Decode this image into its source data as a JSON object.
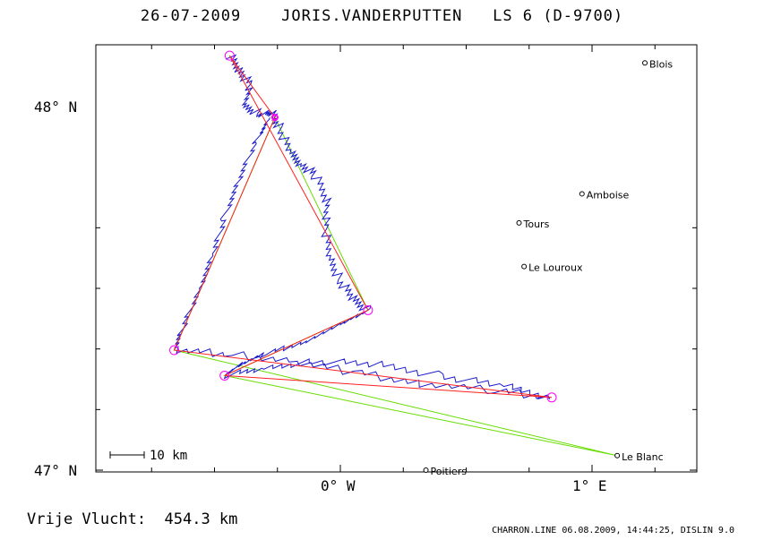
{
  "header": {
    "date": "26-07-2009",
    "pilot": "JORIS.VANDERPUTTEN",
    "glider": "LS 6 (D-9700)"
  },
  "footer": {
    "distance_text": "Vrije Vlucht:  454.3 km",
    "program_text": "CHARRON.LINE 06.08.2009, 14:44:25, DISLIN 9.0"
  },
  "axes": {
    "lat_labels": [
      "48° N",
      "47° N"
    ],
    "lon_labels": [
      "0° W",
      "1° E"
    ],
    "lat_range": [
      47.0,
      48.17
    ],
    "lon_range": [
      -0.98,
      1.4
    ]
  },
  "scale_bar": {
    "label": "10 km"
  },
  "colors": {
    "track": "#1a1acc",
    "task": "#ff2020",
    "optimized": "#66dd00",
    "turnpoint": "#ff00ff",
    "frame": "#000000"
  },
  "places": [
    {
      "name": "Blois",
      "lon": 1.21,
      "lat": 48.12
    },
    {
      "name": "Amboise",
      "lon": 0.96,
      "lat": 47.76
    },
    {
      "name": "Tours",
      "lon": 0.71,
      "lat": 47.68
    },
    {
      "name": "Le Louroux",
      "lon": 0.73,
      "lat": 47.56
    },
    {
      "name": "Le Blanc",
      "lon": 1.1,
      "lat": 47.04
    },
    {
      "name": "Poitiers",
      "lon": 0.34,
      "lat": 47.0
    }
  ],
  "turnpoints": [
    {
      "lon": -0.44,
      "lat": 48.14
    },
    {
      "lon": 0.11,
      "lat": 47.44
    },
    {
      "lon": -0.66,
      "lat": 47.33
    },
    {
      "lon": 0.84,
      "lat": 47.2
    },
    {
      "lon": -0.46,
      "lat": 47.26
    }
  ],
  "start_point": {
    "lon": -0.26,
    "lat": 47.97
  },
  "task_route": [
    {
      "lon": -0.26,
      "lat": 47.97
    },
    {
      "lon": -0.44,
      "lat": 48.14
    },
    {
      "lon": 0.11,
      "lat": 47.44
    },
    {
      "lon": -0.46,
      "lat": 47.26
    },
    {
      "lon": 0.84,
      "lat": 47.2
    },
    {
      "lon": -0.66,
      "lat": 47.33
    },
    {
      "lon": -0.26,
      "lat": 47.97
    }
  ],
  "optimized_route": [
    {
      "lon": -0.26,
      "lat": 47.97
    },
    {
      "lon": 0.11,
      "lat": 47.44
    },
    {
      "lon": -0.46,
      "lat": 47.26
    },
    {
      "lon": 1.1,
      "lat": 47.04
    },
    {
      "lon": -0.66,
      "lat": 47.33
    },
    {
      "lon": -0.26,
      "lat": 47.97
    }
  ],
  "track": [
    {
      "lon": -0.44,
      "lat": 48.14
    },
    {
      "lon": -0.4,
      "lat": 48.1
    },
    {
      "lon": -0.36,
      "lat": 48.06
    },
    {
      "lon": -0.38,
      "lat": 48.0
    },
    {
      "lon": -0.32,
      "lat": 47.98
    },
    {
      "lon": -0.27,
      "lat": 47.98
    },
    {
      "lon": -0.24,
      "lat": 47.94
    },
    {
      "lon": -0.2,
      "lat": 47.87
    },
    {
      "lon": -0.15,
      "lat": 47.84
    },
    {
      "lon": -0.1,
      "lat": 47.81
    },
    {
      "lon": -0.05,
      "lat": 47.74
    },
    {
      "lon": -0.06,
      "lat": 47.66
    },
    {
      "lon": -0.04,
      "lat": 47.58
    },
    {
      "lon": 0.0,
      "lat": 47.52
    },
    {
      "lon": 0.05,
      "lat": 47.47
    },
    {
      "lon": 0.11,
      "lat": 47.44
    },
    {
      "lon": 0.0,
      "lat": 47.4
    },
    {
      "lon": -0.15,
      "lat": 47.35
    },
    {
      "lon": -0.3,
      "lat": 47.32
    },
    {
      "lon": -0.4,
      "lat": 47.29
    },
    {
      "lon": -0.46,
      "lat": 47.26
    },
    {
      "lon": -0.3,
      "lat": 47.28
    },
    {
      "lon": -0.1,
      "lat": 47.3
    },
    {
      "lon": 0.15,
      "lat": 47.29
    },
    {
      "lon": 0.4,
      "lat": 47.26
    },
    {
      "lon": 0.65,
      "lat": 47.23
    },
    {
      "lon": 0.84,
      "lat": 47.2
    },
    {
      "lon": 0.6,
      "lat": 47.22
    },
    {
      "lon": 0.3,
      "lat": 47.24
    },
    {
      "lon": 0.05,
      "lat": 47.27
    },
    {
      "lon": -0.2,
      "lat": 47.3
    },
    {
      "lon": -0.45,
      "lat": 47.32
    },
    {
      "lon": -0.66,
      "lat": 47.33
    },
    {
      "lon": -0.62,
      "lat": 47.4
    },
    {
      "lon": -0.56,
      "lat": 47.5
    },
    {
      "lon": -0.5,
      "lat": 47.6
    },
    {
      "lon": -0.46,
      "lat": 47.7
    },
    {
      "lon": -0.4,
      "lat": 47.8
    },
    {
      "lon": -0.34,
      "lat": 47.9
    },
    {
      "lon": -0.28,
      "lat": 47.97
    }
  ]
}
